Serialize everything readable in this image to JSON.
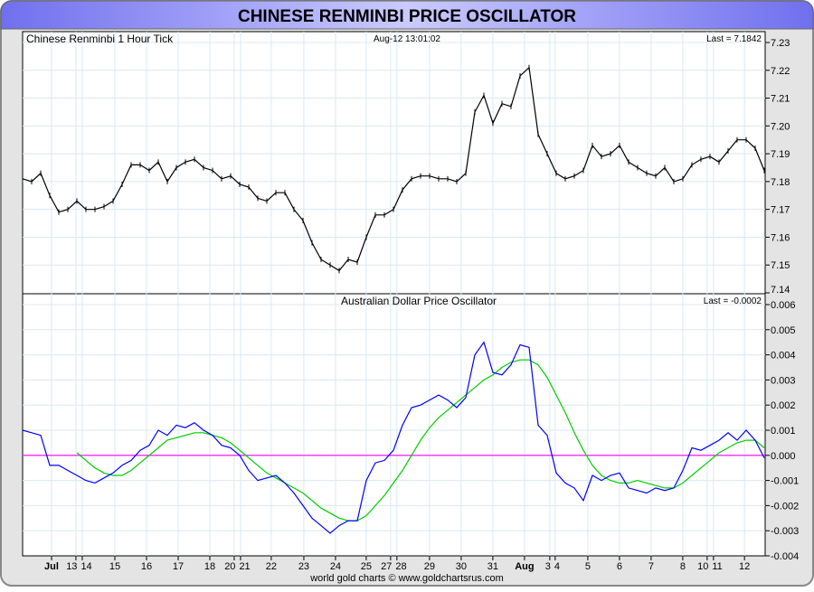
{
  "title": "CHINESE RENMINBI PRICE OSCILLATOR",
  "footer": "world gold charts © www.goldchartsrus.com",
  "colors": {
    "price": "#000000",
    "oscillator": "#0000ff",
    "signal": "#00cc00",
    "zero_line": "#ff00ff",
    "grid": "#d8e8f4",
    "title_bar": "#8c8cf4"
  },
  "chart_data": [
    {
      "type": "line",
      "title": "Chinese Renminbi 1 Hour Tick",
      "timestamp": "Aug-12  13:01:02",
      "last_label": "Last = 7.1842",
      "ylim": [
        7.14,
        7.23
      ],
      "yticks": [
        "7.23",
        "7.22",
        "7.21",
        "7.20",
        "7.19",
        "7.18",
        "7.17",
        "7.16",
        "7.15",
        "7.14"
      ],
      "x_units": "trading days from Jul 15",
      "x_start": -2.914,
      "x_step": 0.2857,
      "series": [
        {
          "name": "Chinese Renminbi",
          "values": [
            7.181,
            7.18,
            7.183,
            7.175,
            7.169,
            7.17,
            7.173,
            7.17,
            7.17,
            7.171,
            7.173,
            7.179,
            7.186,
            7.186,
            7.184,
            7.187,
            7.18,
            7.185,
            7.187,
            7.188,
            7.185,
            7.184,
            7.181,
            7.182,
            7.179,
            7.178,
            7.174,
            7.173,
            7.176,
            7.176,
            7.17,
            7.166,
            7.158,
            7.152,
            7.15,
            7.148,
            7.152,
            7.151,
            7.16,
            7.168,
            7.168,
            7.17,
            7.177,
            7.181,
            7.182,
            7.182,
            7.181,
            7.181,
            7.18,
            7.183,
            7.205,
            7.211,
            7.201,
            7.208,
            7.207,
            7.218,
            7.221,
            7.197,
            7.19,
            7.183,
            7.181,
            7.182,
            7.184,
            7.193,
            7.189,
            7.19,
            7.193,
            7.187,
            7.185,
            7.183,
            7.182,
            7.185,
            7.18,
            7.181,
            7.186,
            7.188,
            7.189,
            7.187,
            7.191,
            7.195,
            7.195,
            7.192,
            7.184
          ]
        }
      ]
    },
    {
      "type": "line",
      "title": "Australian Dollar Price Oscillator",
      "last_label": "Last = -0.0002",
      "ylim": [
        -0.004,
        0.006
      ],
      "yticks": [
        "0.006",
        "0.005",
        "0.004",
        "0.003",
        "0.002",
        "0.001",
        "0.000",
        "-0.001",
        "-0.002",
        "-0.003",
        "-0.004"
      ],
      "x_units": "trading days from Jul 15",
      "x_start": -2.914,
      "x_step": 0.2857,
      "xticks": [
        {
          "label": "Jul",
          "x": -2.0,
          "bold": true
        },
        {
          "label": "13",
          "x": -1.23
        },
        {
          "label": "14",
          "x": -1.03
        },
        {
          "label": "15",
          "x": 0
        },
        {
          "label": "16",
          "x": 1
        },
        {
          "label": "17",
          "x": 2
        },
        {
          "label": "18",
          "x": 3
        },
        {
          "label": "20",
          "x": 3.77
        },
        {
          "label": "21",
          "x": 3.97
        },
        {
          "label": "22",
          "x": 4.94
        },
        {
          "label": "23",
          "x": 5.97
        },
        {
          "label": "24",
          "x": 6.97
        },
        {
          "label": "25",
          "x": 7.94
        },
        {
          "label": "27",
          "x": 8.71
        },
        {
          "label": "28",
          "x": 8.91
        },
        {
          "label": "29",
          "x": 9.94
        },
        {
          "label": "30",
          "x": 10.94
        },
        {
          "label": "31",
          "x": 11.94
        },
        {
          "label": "Aug",
          "x": 12.94,
          "bold": true
        },
        {
          "label": "3",
          "x": 13.74
        },
        {
          "label": "4",
          "x": 13.91
        },
        {
          "label": "5",
          "x": 14.94
        },
        {
          "label": "6",
          "x": 15.94
        },
        {
          "label": "7",
          "x": 16.94
        },
        {
          "label": "8",
          "x": 17.94
        },
        {
          "label": "10",
          "x": 18.71
        },
        {
          "label": "11",
          "x": 18.91
        },
        {
          "label": "12",
          "x": 19.89
        }
      ],
      "series": [
        {
          "name": "Oscillator",
          "start_index": 0,
          "values": [
            0.001,
            0.0009,
            0.0008,
            -0.0004,
            -0.0004,
            -0.0006,
            -0.0008,
            -0.001,
            -0.0011,
            -0.0009,
            -0.0007,
            -0.0004,
            -0.0002,
            0.0002,
            0.0004,
            0.001,
            0.0008,
            0.0012,
            0.0011,
            0.0013,
            0.001,
            0.0008,
            0.0004,
            0.0003,
            0.0,
            -0.0006,
            -0.001,
            -0.0009,
            -0.0008,
            -0.0011,
            -0.0015,
            -0.002,
            -0.0025,
            -0.0028,
            -0.0031,
            -0.0028,
            -0.0026,
            -0.0026,
            -0.001,
            -0.0003,
            -0.0002,
            0.0002,
            0.0012,
            0.0019,
            0.002,
            0.0022,
            0.0024,
            0.0022,
            0.0019,
            0.0023,
            0.004,
            0.0045,
            0.0033,
            0.0032,
            0.0036,
            0.0044,
            0.0043,
            0.0012,
            0.0008,
            -0.0007,
            -0.0011,
            -0.0013,
            -0.0018,
            -0.0008,
            -0.001,
            -0.0008,
            -0.0007,
            -0.0013,
            -0.0014,
            -0.0015,
            -0.0013,
            -0.0014,
            -0.0013,
            -0.0006,
            0.0003,
            0.0002,
            0.0004,
            0.0006,
            0.0009,
            0.0006,
            0.001,
            0.0006,
            -0.0001
          ]
        },
        {
          "name": "Signal",
          "start_index": 6,
          "values": [
            0.0001,
            -0.0002,
            -0.0005,
            -0.0007,
            -0.0008,
            -0.0008,
            -0.0006,
            -0.0003,
            0.0,
            0.0003,
            0.0006,
            0.0007,
            0.0008,
            0.0009,
            0.0009,
            0.0008,
            0.0007,
            0.0005,
            0.0002,
            -0.0001,
            -0.0004,
            -0.0007,
            -0.0009,
            -0.0011,
            -0.0013,
            -0.0015,
            -0.0018,
            -0.0021,
            -0.0023,
            -0.0025,
            -0.0026,
            -0.0026,
            -0.0024,
            -0.002,
            -0.0016,
            -0.0011,
            -0.0006,
            0.0,
            0.0006,
            0.0011,
            0.0015,
            0.0018,
            0.0021,
            0.0024,
            0.0027,
            0.003,
            0.0032,
            0.0035,
            0.0037,
            0.0038,
            0.0038,
            0.0036,
            0.0031,
            0.0024,
            0.0017,
            0.0009,
            0.0002,
            -0.0004,
            -0.0008,
            -0.001,
            -0.0011,
            -0.0011,
            -0.001,
            -0.0011,
            -0.0012,
            -0.0013,
            -0.0013,
            -0.0011,
            -0.0008,
            -0.0005,
            -0.0002,
            0.0001,
            0.0003,
            0.0005,
            0.0006,
            0.0006,
            0.0003
          ]
        },
        {
          "name": "Zero line",
          "constant": 0
        }
      ]
    }
  ]
}
